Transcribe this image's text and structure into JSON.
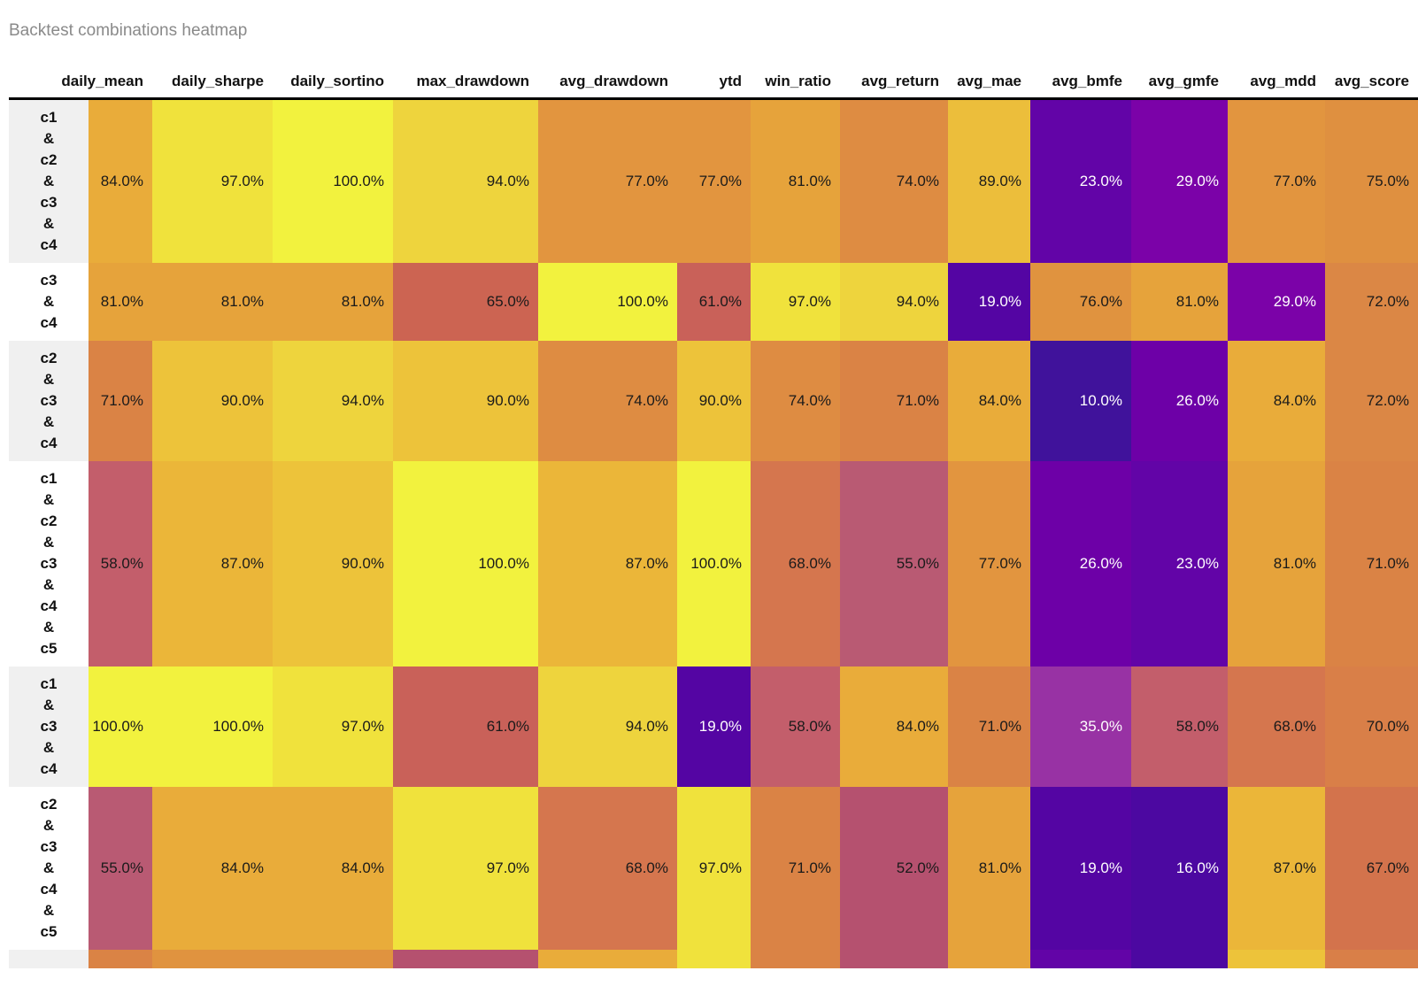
{
  "page_title": "Backtest combinations heatmap",
  "chart_data": {
    "type": "heatmap",
    "title": "Backtest combinations heatmap",
    "value_unit": "%",
    "value_range": [
      0,
      100
    ],
    "colormap": "plasma",
    "legend": "none",
    "columns": [
      "daily_mean",
      "daily_sharpe",
      "daily_sortino",
      "max_drawdown",
      "avg_drawdown",
      "ytd",
      "win_ratio",
      "avg_return",
      "avg_mae",
      "avg_bmfe",
      "avg_gmfe",
      "avg_mdd",
      "avg_score"
    ],
    "rows": [
      "c1 & c2 & c3 & c4",
      "c3 & c4",
      "c2 & c3 & c4",
      "c1 & c2 & c3 & c4 & c5",
      "c1 & c3 & c4",
      "c2 & c3 & c4 & c5"
    ],
    "values": [
      [
        84,
        97,
        100,
        94,
        77,
        77,
        81,
        74,
        89,
        23,
        29,
        77,
        75
      ],
      [
        81,
        81,
        81,
        65,
        100,
        61,
        97,
        94,
        19,
        76,
        81,
        29,
        72
      ],
      [
        71,
        90,
        94,
        90,
        74,
        90,
        74,
        71,
        84,
        10,
        26,
        84,
        72
      ],
      [
        58,
        87,
        90,
        100,
        87,
        100,
        68,
        55,
        77,
        26,
        23,
        81,
        71
      ],
      [
        100,
        100,
        97,
        61,
        94,
        19,
        58,
        84,
        71,
        35,
        58,
        68,
        70
      ],
      [
        55,
        84,
        84,
        97,
        68,
        97,
        71,
        52,
        81,
        19,
        16,
        87,
        67
      ]
    ],
    "cell_colors": {
      "10": "#40129b",
      "16": "#4c08a1",
      "19": "#5405a3",
      "23": "#6204a7",
      "26": "#6d00a7",
      "29": "#7b02a8",
      "35": "#9832a4",
      "52": "#b5516f",
      "55": "#b95a73",
      "58": "#c35e6b",
      "61": "#c96159",
      "65": "#cc6452",
      "67": "#d3734c",
      "68": "#d5764e",
      "70": "#d97f48",
      "71": "#da8345",
      "72": "#db8745",
      "74": "#de8c42",
      "75": "#df9040",
      "76": "#e0933f",
      "77": "#e2953f",
      "81": "#e6a33b",
      "84": "#e9ac3a",
      "87": "#ebb639",
      "89": "#ecbe3b",
      "90": "#edc33a",
      "94": "#eed43d",
      "97": "#f0e23c",
      "100": "#f2f23e"
    },
    "light_text_below": 50,
    "text_color_dark": "#1a1a1a",
    "text_color_light": "#ffffff",
    "partial_row_colors": [
      "#da8345",
      "#e0933f",
      "#e0933f",
      "#b5516f",
      "#e9ac3a",
      "#f0e23c",
      "#da8345",
      "#b5516f",
      "#e6a33b",
      "#6204a7",
      "#4c08a1",
      "#edc33a",
      "#d97f48"
    ]
  }
}
